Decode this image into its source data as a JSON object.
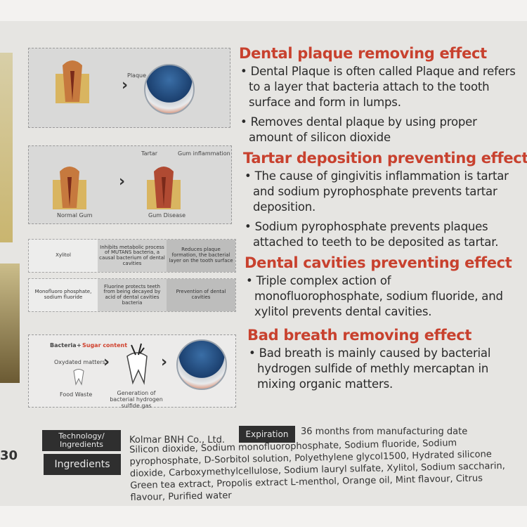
{
  "page_number": "30",
  "sections": [
    {
      "heading": "Dental plaque removing effect",
      "bullets": [
        "Dental Plaque is often called Plaque and refers to a layer that bacteria attach to the tooth surface and form in lumps.",
        "Removes dental plaque by using proper amount of silicon dioxide"
      ]
    },
    {
      "heading": "Tartar deposition preventing effect",
      "bullets": [
        "The cause of gingivitis inflammation is tartar and sodium pyrophosphate prevents tartar deposition.",
        "Sodium pyrophosphate prevents plaques attached to teeth to be deposited as tartar."
      ]
    },
    {
      "heading": "Dental cavities preventing effect",
      "bullets": [
        "Triple complex action of monofluorophosphate, sodium fluoride, and xylitol prevents dental cavities."
      ]
    },
    {
      "heading": "Bad breath removing effect",
      "bullets": [
        "Bad breath is mainly caused by bacterial hydrogen sulfide of methly mercaptan in mixing organic matters."
      ]
    }
  ],
  "diagrams": {
    "plaque_label": "Plaque",
    "tartar_label": "Tartar",
    "gum_inflammation_label": "Gum inflammation",
    "normal_gum_label": "Normal Gum",
    "gum_disease_label": "Gum Disease",
    "rows": [
      [
        "Xylitol",
        "Inhibits metabolic process of MUTANS bacteria, a causal bacterium of dental cavities",
        "Reduces plaque formation, the bacterial layer on the tooth surface"
      ],
      [
        "Monofluoro phosphate, sodium fluoride",
        "Fluorine protects teeth from being decayed by acid of dental cavities bacteria",
        "Prevention of dental cavities"
      ]
    ],
    "bacteria": "Bacteria",
    "plus": "+",
    "sugar": "Sugar content",
    "oxydated": "Oxydated matters",
    "food_waste": "Food Waste",
    "generation": "Generation of bacterial hydrogen sulfide gas"
  },
  "footer": {
    "tech_label": "Technology/ Ingredients",
    "tech_value": "Kolmar BNH Co., Ltd.",
    "expiration_label": "Expiration",
    "expiration_value": "36 months from manufacturing date",
    "ingredients_label": "Ingredients",
    "ingredients_value": "Silicon dioxide, Sodium monofluorophosphate, Sodium fluoride, Sodium pyrophosphate, D-Sorbitol solution, Polyethylene glycol1500, Hydrated silicone dioxide, Carboxymethylcellulose, Sodium lauryl sulfate, Xylitol, Sodium saccharin, Green tea extract, Propolis extract L-menthol, Orange oil, Mint flavour, Citrus flavour, Purified water"
  },
  "colors": {
    "heading": "#c8412e",
    "tag_bg": "#2f2f2f"
  }
}
